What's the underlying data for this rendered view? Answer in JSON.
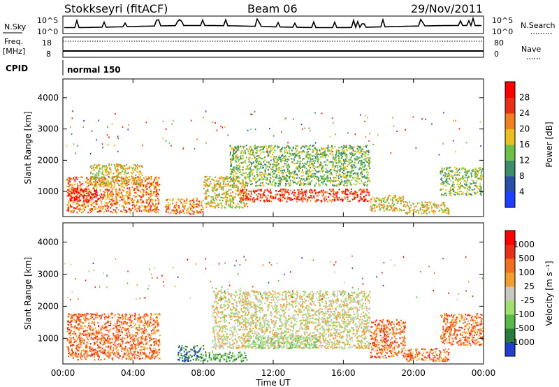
{
  "header": {
    "station": "Stokkseyri (fitACF)",
    "beam": "Beam 06",
    "date": "29/Nov/2011"
  },
  "strip_panels": {
    "nsky": {
      "label": "N.Sky",
      "left_ticks": [
        "10^5",
        "10^0"
      ],
      "right_ticks": [
        "10^5",
        "10^0"
      ],
      "right_label": "N.Search"
    },
    "freq": {
      "label_line1": "Freq.",
      "label_line2": "[MHz]",
      "left_ticks": [
        "18",
        "8"
      ],
      "right_ticks": [
        "80",
        "0"
      ],
      "right_label": "Nave"
    },
    "cpid": {
      "label": "CPID",
      "value": "normal 150"
    }
  },
  "chart_data": [
    {
      "type": "heatmap",
      "name": "power",
      "ylabel": "Slant Range [km]",
      "ylim": [
        200,
        4600
      ],
      "yticks": [
        "1000",
        "2000",
        "3000",
        "4000"
      ],
      "xlim": [
        "00:00",
        "24:00"
      ],
      "colorbar": {
        "label": "Power [dB]",
        "ticks": [
          "4",
          "8",
          "12",
          "16",
          "20",
          "24",
          "28"
        ],
        "colors": [
          "#1f3fff",
          "#2850a8",
          "#3f8c6a",
          "#6cc04a",
          "#e8c020",
          "#f08020",
          "#e83018",
          "#ff0000"
        ]
      },
      "bands": [
        {
          "t": [
            0.2,
            5.5
          ],
          "r": [
            350,
            1500
          ],
          "level": 5
        },
        {
          "t": [
            0.3,
            2.0
          ],
          "r": [
            700,
            1100
          ],
          "level": 7
        },
        {
          "t": [
            1.5,
            4.5
          ],
          "r": [
            1200,
            1900
          ],
          "level": 4
        },
        {
          "t": [
            5.8,
            8.0
          ],
          "r": [
            300,
            800
          ],
          "level": 5
        },
        {
          "t": [
            8.0,
            10.5
          ],
          "r": [
            500,
            1500
          ],
          "level": 4
        },
        {
          "t": [
            10.0,
            17.5
          ],
          "r": [
            700,
            1100
          ],
          "level": 6
        },
        {
          "t": [
            9.5,
            17.5
          ],
          "r": [
            1200,
            2500
          ],
          "level": 3
        },
        {
          "t": [
            17.5,
            19.5
          ],
          "r": [
            400,
            900
          ],
          "level": 4
        },
        {
          "t": [
            19.5,
            22.0
          ],
          "r": [
            300,
            700
          ],
          "level": 4
        },
        {
          "t": [
            21.5,
            24.0
          ],
          "r": [
            900,
            1800
          ],
          "level": 3
        }
      ]
    },
    {
      "type": "heatmap",
      "name": "velocity",
      "ylabel": "Slant Range [km]",
      "ylim": [
        200,
        4600
      ],
      "yticks": [
        "1000",
        "2000",
        "3000",
        "4000"
      ],
      "xlim": [
        "00:00",
        "24:00"
      ],
      "xticks": [
        "00:00",
        "04:00",
        "08:00",
        "12:00",
        "16:00",
        "20:00",
        "00:00"
      ],
      "xlabel": "Time UT",
      "colorbar": {
        "label": "Velocity [m s⁻¹]",
        "ticks": [
          "1000",
          "500",
          "100",
          "25",
          "-25",
          "-100",
          "-500",
          "-1000"
        ],
        "colors": [
          "#1f3fcc",
          "#2a7a3a",
          "#5ab84a",
          "#a0e070",
          "#c8c8c0",
          "#f0a030",
          "#f07020",
          "#e83018",
          "#ff0000"
        ]
      },
      "bands": [
        {
          "t": [
            0.2,
            5.5
          ],
          "r": [
            350,
            1800
          ],
          "level": 6
        },
        {
          "t": [
            6.5,
            8.0
          ],
          "r": [
            300,
            800
          ],
          "level": 1
        },
        {
          "t": [
            8.0,
            10.5
          ],
          "r": [
            300,
            600
          ],
          "level": 2
        },
        {
          "t": [
            8.5,
            17.5
          ],
          "r": [
            700,
            2500
          ],
          "level": 4
        },
        {
          "t": [
            10.5,
            14.5
          ],
          "r": [
            700,
            1100
          ],
          "level": 3
        },
        {
          "t": [
            17.5,
            19.5
          ],
          "r": [
            400,
            1600
          ],
          "level": 6
        },
        {
          "t": [
            19.5,
            22.0
          ],
          "r": [
            300,
            700
          ],
          "level": 6
        },
        {
          "t": [
            21.5,
            24.0
          ],
          "r": [
            800,
            1800
          ],
          "level": 6
        }
      ]
    }
  ]
}
